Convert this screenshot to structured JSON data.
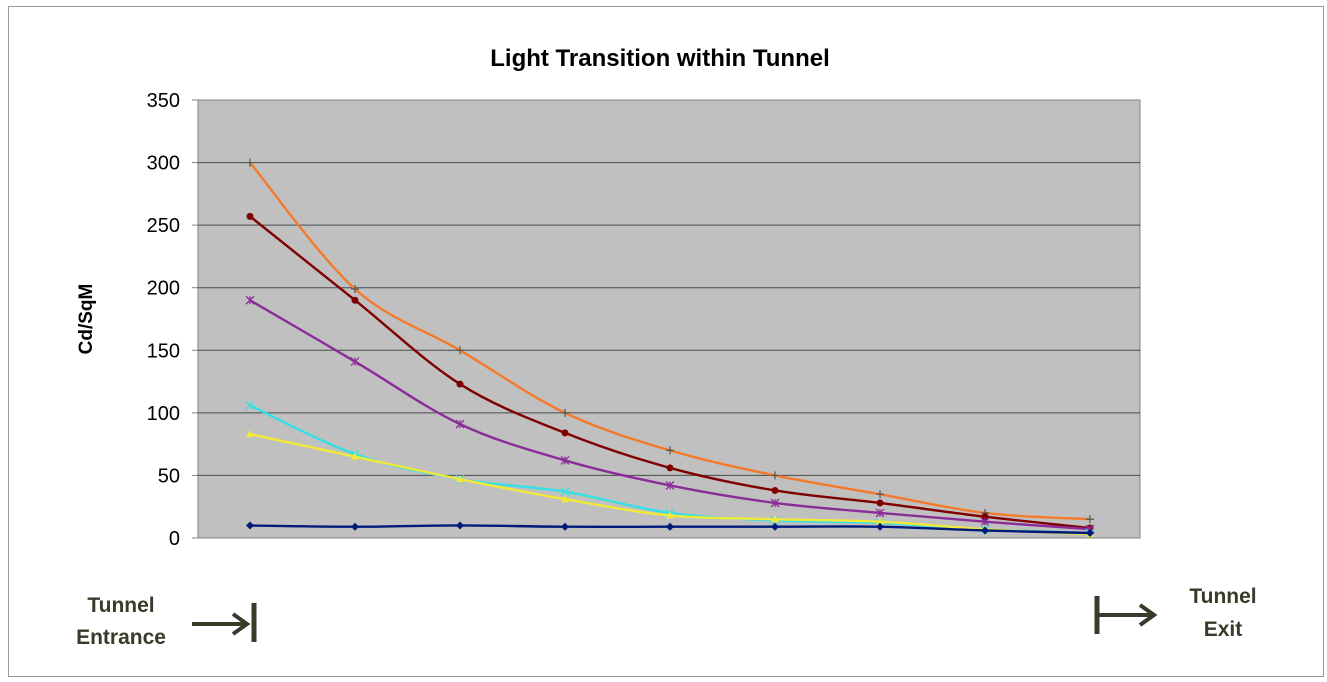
{
  "chart_data": {
    "type": "line",
    "title": "Light Transition within Tunnel",
    "ylabel": "Cd/SqM",
    "xlabel": "",
    "ylim": [
      0,
      350
    ],
    "yticks": [
      "0",
      "50",
      "100",
      "150",
      "200",
      "250",
      "300",
      "350"
    ],
    "grid": true,
    "plot_background": "#c0c0c0",
    "x": [
      1,
      2,
      3,
      4,
      5,
      6,
      7,
      8,
      9
    ],
    "series": [
      {
        "color": "#f47a2a",
        "marker": "plus",
        "values": [
          300,
          199,
          150,
          100,
          70,
          50,
          35,
          20,
          15
        ]
      },
      {
        "color": "#800000",
        "marker": "circle",
        "values": [
          257,
          190,
          123,
          84,
          56,
          38,
          28,
          17,
          8
        ]
      },
      {
        "color": "#8b2d99",
        "marker": "star",
        "values": [
          190,
          141,
          91,
          62,
          42,
          28,
          20,
          13,
          7
        ]
      },
      {
        "color": "#33e0e6",
        "marker": "x",
        "values": [
          106,
          67,
          47,
          37,
          20,
          14,
          12,
          7,
          4
        ]
      },
      {
        "color": "#f2e83a",
        "marker": "triangle",
        "values": [
          83,
          65,
          47,
          31,
          18,
          15,
          13,
          7,
          3
        ]
      },
      {
        "color": "#001a7a",
        "marker": "diamond",
        "values": [
          10,
          9,
          10,
          9,
          9,
          9,
          9,
          6,
          4
        ]
      }
    ],
    "annotations": {
      "entrance_line1": "Tunnel",
      "entrance_line2": "Entrance",
      "exit_line1": "Tunnel",
      "exit_line2": "Exit"
    }
  }
}
